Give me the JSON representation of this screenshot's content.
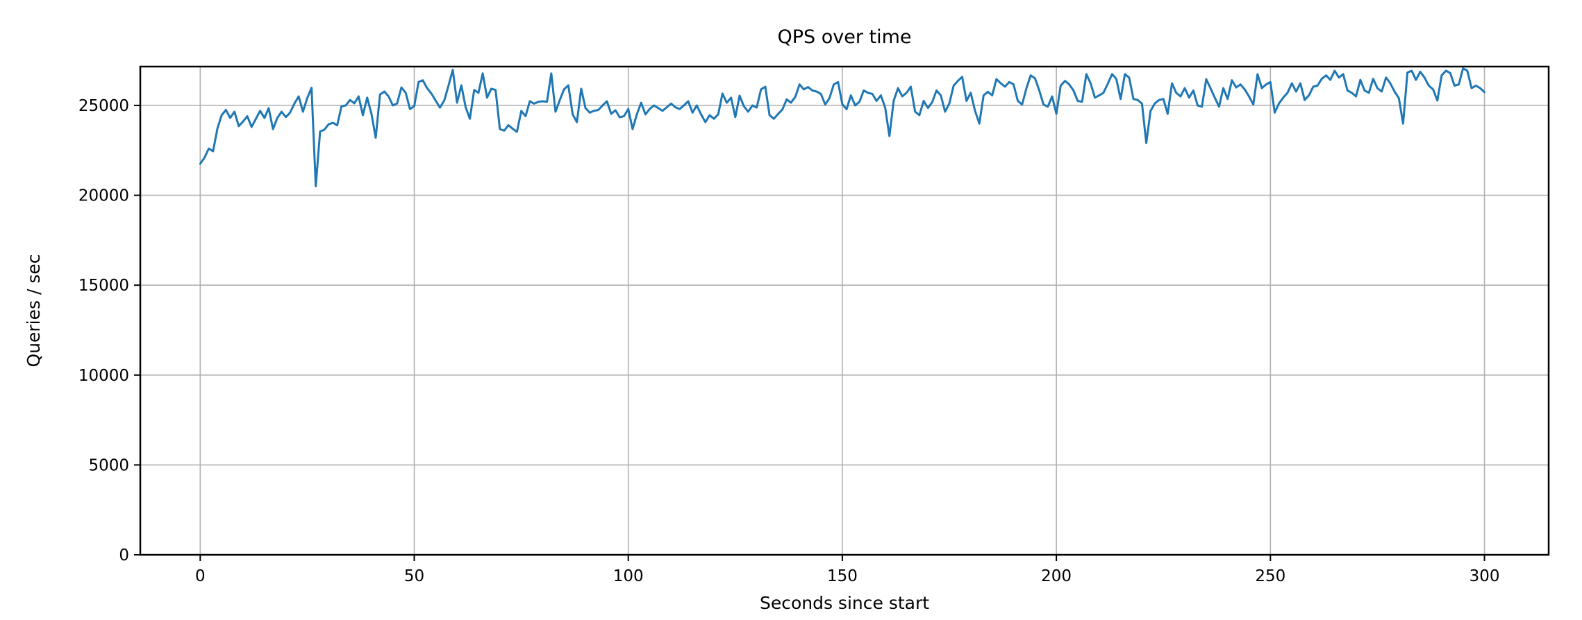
{
  "chart_data": {
    "type": "line",
    "title": "QPS over time",
    "xlabel": "Seconds since start",
    "ylabel": "Queries / sec",
    "xlim": [
      -14,
      315
    ],
    "ylim": [
      0,
      27160
    ],
    "xticks": [
      0,
      50,
      100,
      150,
      200,
      250,
      300
    ],
    "yticks": [
      0,
      5000,
      10000,
      15000,
      20000,
      25000
    ],
    "grid": true,
    "legend": "none",
    "line_color": "#1f77b4",
    "grid_color": "#b0b0b0",
    "spine_color": "#000000",
    "background_color": "#ffffff",
    "series": [
      {
        "name": "qps",
        "x_start": 0,
        "x_step": 1,
        "y": [
          21750,
          22100,
          22600,
          22450,
          23700,
          24450,
          24750,
          24300,
          24650,
          23850,
          24100,
          24400,
          23800,
          24250,
          24700,
          24300,
          24850,
          23680,
          24300,
          24650,
          24350,
          24600,
          25100,
          25500,
          24650,
          25400,
          25980,
          20500,
          23550,
          23650,
          23950,
          24030,
          23900,
          24950,
          25000,
          25300,
          25120,
          25500,
          24460,
          25430,
          24530,
          23200,
          25600,
          25770,
          25500,
          25000,
          25110,
          26000,
          25700,
          24800,
          24960,
          26300,
          26400,
          25960,
          25660,
          25270,
          24880,
          25270,
          26100,
          26980,
          25150,
          26120,
          24900,
          24260,
          25860,
          25700,
          26780,
          25430,
          25930,
          25860,
          23680,
          23600,
          23900,
          23700,
          23530,
          24690,
          24400,
          25230,
          25100,
          25200,
          25230,
          25200,
          26780,
          24650,
          25300,
          25900,
          26120,
          24500,
          24070,
          25930,
          24850,
          24600,
          24700,
          24750,
          25000,
          25230,
          24530,
          24730,
          24340,
          24400,
          24800,
          23680,
          24500,
          25150,
          24500,
          24800,
          25000,
          24850,
          24700,
          24900,
          25100,
          24900,
          24800,
          25000,
          25230,
          24600,
          25000,
          24500,
          24070,
          24450,
          24260,
          24500,
          25660,
          25150,
          25430,
          24350,
          25540,
          24960,
          24650,
          25000,
          24880,
          25890,
          26040,
          24460,
          24260,
          24530,
          24770,
          25340,
          25150,
          25470,
          26170,
          25890,
          26020,
          25830,
          25770,
          25640,
          25050,
          25400,
          26170,
          26300,
          25060,
          24790,
          25560,
          25000,
          25200,
          25830,
          25700,
          25640,
          25250,
          25560,
          24880,
          23290,
          25270,
          25960,
          25500,
          25700,
          26040,
          24650,
          24460,
          25250,
          24860,
          25190,
          25830,
          25560,
          24650,
          25110,
          26100,
          26360,
          26590,
          25250,
          25700,
          24700,
          23990,
          25560,
          25760,
          25560,
          26460,
          26230,
          26040,
          26300,
          26170,
          25250,
          25050,
          25960,
          26670,
          26510,
          25830,
          25050,
          24930,
          25500,
          24530,
          26100,
          26360,
          26170,
          25830,
          25250,
          25200,
          26740,
          26230,
          25430,
          25560,
          25700,
          26200,
          26740,
          26480,
          25360,
          26740,
          26550,
          25360,
          25300,
          25100,
          22910,
          24690,
          25110,
          25300,
          25360,
          24530,
          26230,
          25700,
          25500,
          25960,
          25430,
          25830,
          25000,
          24930,
          26460,
          25960,
          25430,
          24930,
          25960,
          25360,
          26400,
          26000,
          26170,
          25890,
          25500,
          25050,
          26740,
          25960,
          26170,
          26300,
          24600,
          25110,
          25430,
          25700,
          26230,
          25770,
          26230,
          25300,
          25560,
          26040,
          26100,
          26480,
          26670,
          26420,
          26930,
          26550,
          26740,
          25830,
          25700,
          25500,
          26420,
          25830,
          25700,
          26480,
          25960,
          25770,
          26550,
          26230,
          25770,
          25400,
          23990,
          26820,
          26930,
          26420,
          26870,
          26550,
          26100,
          25890,
          25270,
          26670,
          26930,
          26800,
          26100,
          26170,
          27060,
          26930,
          25960,
          26100,
          25960,
          25740
        ]
      }
    ]
  }
}
